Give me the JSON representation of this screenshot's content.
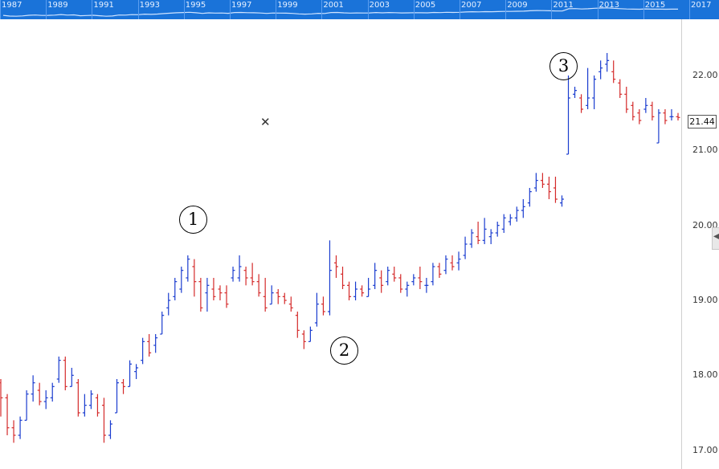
{
  "navigator": {
    "years": [
      "1987",
      "1989",
      "1991",
      "1993",
      "1995",
      "1997",
      "1999",
      "2001",
      "2003",
      "2005",
      "2007",
      "2009",
      "2011",
      "2013",
      "2015",
      "2017"
    ]
  },
  "price_axis": {
    "labels": [
      "22.00",
      "21.00",
      "20.00",
      "19.00",
      "18.00",
      "17.00"
    ],
    "last_price": "21.44"
  },
  "markers": [
    "1",
    "2",
    "3"
  ],
  "icons": {
    "crosshair": "x-icon",
    "handle": "chevron-left-icon"
  },
  "colors": {
    "up": "#1a3ccf",
    "down": "#d42a2a",
    "navigator_bg": "#1a73d9"
  },
  "chart_data": {
    "type": "ohlc",
    "x_range": [
      1987,
      2017
    ],
    "ylim": [
      16.75,
      22.75
    ],
    "yticks": [
      17,
      18,
      19,
      20,
      21,
      22
    ],
    "grid": false,
    "bars": [
      [
        17.9,
        17.95,
        17.45,
        17.7
      ],
      [
        17.7,
        17.75,
        17.2,
        17.3
      ],
      [
        17.3,
        17.4,
        17.1,
        17.2
      ],
      [
        17.2,
        17.45,
        17.15,
        17.4
      ],
      [
        17.4,
        17.8,
        17.4,
        17.75
      ],
      [
        17.75,
        18.0,
        17.65,
        17.9
      ],
      [
        17.8,
        17.9,
        17.6,
        17.65
      ],
      [
        17.65,
        17.8,
        17.55,
        17.7
      ],
      [
        17.7,
        17.9,
        17.65,
        17.85
      ],
      [
        17.95,
        18.25,
        17.9,
        18.2
      ],
      [
        18.2,
        18.25,
        17.8,
        17.85
      ],
      [
        17.85,
        18.1,
        17.85,
        18.0
      ],
      [
        17.9,
        17.95,
        17.45,
        17.5
      ],
      [
        17.5,
        17.75,
        17.45,
        17.6
      ],
      [
        17.6,
        17.8,
        17.55,
        17.75
      ],
      [
        17.7,
        17.75,
        17.45,
        17.5
      ],
      [
        17.6,
        17.7,
        17.1,
        17.2
      ],
      [
        17.2,
        17.4,
        17.15,
        17.35
      ],
      [
        17.5,
        17.95,
        17.5,
        17.9
      ],
      [
        17.9,
        17.95,
        17.75,
        17.85
      ],
      [
        17.85,
        18.2,
        17.85,
        18.15
      ],
      [
        18.05,
        18.15,
        17.95,
        18.1
      ],
      [
        18.2,
        18.5,
        18.15,
        18.45
      ],
      [
        18.45,
        18.55,
        18.25,
        18.3
      ],
      [
        18.4,
        18.55,
        18.3,
        18.5
      ],
      [
        18.55,
        18.85,
        18.55,
        18.8
      ],
      [
        18.9,
        19.1,
        18.8,
        19.0
      ],
      [
        19.05,
        19.3,
        19.0,
        19.25
      ],
      [
        19.15,
        19.45,
        19.1,
        19.4
      ],
      [
        19.3,
        19.6,
        19.25,
        19.55
      ],
      [
        19.45,
        19.55,
        19.05,
        19.25
      ],
      [
        19.25,
        19.3,
        18.85,
        18.9
      ],
      [
        19.1,
        19.3,
        18.85,
        19.2
      ],
      [
        19.15,
        19.3,
        19.0,
        19.05
      ],
      [
        19.15,
        19.2,
        19.0,
        19.1
      ],
      [
        19.1,
        19.2,
        18.9,
        18.95
      ],
      [
        19.3,
        19.45,
        19.25,
        19.4
      ],
      [
        19.3,
        19.6,
        19.25,
        19.45
      ],
      [
        19.4,
        19.45,
        19.2,
        19.3
      ],
      [
        19.3,
        19.5,
        19.2,
        19.25
      ],
      [
        19.25,
        19.35,
        19.05,
        19.1
      ],
      [
        19.05,
        19.3,
        18.85,
        18.9
      ],
      [
        18.95,
        19.2,
        18.95,
        19.1
      ],
      [
        19.1,
        19.15,
        18.95,
        19.05
      ],
      [
        19.05,
        19.1,
        18.95,
        19.0
      ],
      [
        18.95,
        19.05,
        18.85,
        18.9
      ],
      [
        18.8,
        18.85,
        18.5,
        18.6
      ],
      [
        18.55,
        18.6,
        18.35,
        18.45
      ],
      [
        18.45,
        18.65,
        18.45,
        18.6
      ],
      [
        18.7,
        19.1,
        18.65,
        18.95
      ],
      [
        18.95,
        19.05,
        18.8,
        18.85
      ],
      [
        18.85,
        19.8,
        18.8,
        19.4
      ],
      [
        19.5,
        19.6,
        19.3,
        19.45
      ],
      [
        19.35,
        19.45,
        19.15,
        19.2
      ],
      [
        19.2,
        19.25,
        19.0,
        19.05
      ],
      [
        19.05,
        19.25,
        19.0,
        19.15
      ],
      [
        19.15,
        19.2,
        19.05,
        19.1
      ],
      [
        19.05,
        19.3,
        19.05,
        19.15
      ],
      [
        19.2,
        19.5,
        19.15,
        19.4
      ],
      [
        19.3,
        19.4,
        19.1,
        19.2
      ],
      [
        19.25,
        19.45,
        19.2,
        19.4
      ],
      [
        19.35,
        19.45,
        19.25,
        19.3
      ],
      [
        19.3,
        19.35,
        19.1,
        19.15
      ],
      [
        19.15,
        19.25,
        19.05,
        19.2
      ],
      [
        19.25,
        19.35,
        19.2,
        19.3
      ],
      [
        19.3,
        19.45,
        19.15,
        19.25
      ],
      [
        19.2,
        19.3,
        19.1,
        19.2
      ],
      [
        19.25,
        19.5,
        19.2,
        19.45
      ],
      [
        19.45,
        19.5,
        19.3,
        19.35
      ],
      [
        19.4,
        19.6,
        19.35,
        19.55
      ],
      [
        19.5,
        19.6,
        19.4,
        19.45
      ],
      [
        19.5,
        19.65,
        19.4,
        19.55
      ],
      [
        19.6,
        19.85,
        19.55,
        19.75
      ],
      [
        19.75,
        19.95,
        19.7,
        19.9
      ],
      [
        19.85,
        20.05,
        19.75,
        19.8
      ],
      [
        19.8,
        20.1,
        19.75,
        19.95
      ],
      [
        19.85,
        19.95,
        19.75,
        19.9
      ],
      [
        19.9,
        20.05,
        19.85,
        20.0
      ],
      [
        19.95,
        20.15,
        19.9,
        20.1
      ],
      [
        20.05,
        20.15,
        20.0,
        20.1
      ],
      [
        20.1,
        20.25,
        20.05,
        20.2
      ],
      [
        20.2,
        20.35,
        20.1,
        20.25
      ],
      [
        20.3,
        20.5,
        20.25,
        20.45
      ],
      [
        20.5,
        20.7,
        20.45,
        20.6
      ],
      [
        20.6,
        20.7,
        20.5,
        20.55
      ],
      [
        20.55,
        20.65,
        20.35,
        20.45
      ],
      [
        20.5,
        20.65,
        20.3,
        20.35
      ],
      [
        20.3,
        20.4,
        20.25,
        20.35
      ],
      [
        20.95,
        22.0,
        20.95,
        21.7
      ],
      [
        21.75,
        21.85,
        21.7,
        21.8
      ],
      [
        21.7,
        21.75,
        21.5,
        21.55
      ],
      [
        21.6,
        22.1,
        21.55,
        21.7
      ],
      [
        21.7,
        22.0,
        21.55,
        21.95
      ],
      [
        22.05,
        22.2,
        21.95,
        22.1
      ],
      [
        22.15,
        22.3,
        22.05,
        22.2
      ],
      [
        22.05,
        22.2,
        21.9,
        21.95
      ],
      [
        21.9,
        21.95,
        21.7,
        21.75
      ],
      [
        21.75,
        21.85,
        21.5,
        21.55
      ],
      [
        21.6,
        21.65,
        21.4,
        21.45
      ],
      [
        21.5,
        21.55,
        21.35,
        21.4
      ],
      [
        21.55,
        21.7,
        21.5,
        21.6
      ],
      [
        21.6,
        21.65,
        21.4,
        21.45
      ],
      [
        21.1,
        21.55,
        21.1,
        21.5
      ],
      [
        21.5,
        21.55,
        21.35,
        21.4
      ],
      [
        21.45,
        21.55,
        21.4,
        21.45
      ],
      [
        21.45,
        21.5,
        21.4,
        21.44
      ]
    ]
  }
}
